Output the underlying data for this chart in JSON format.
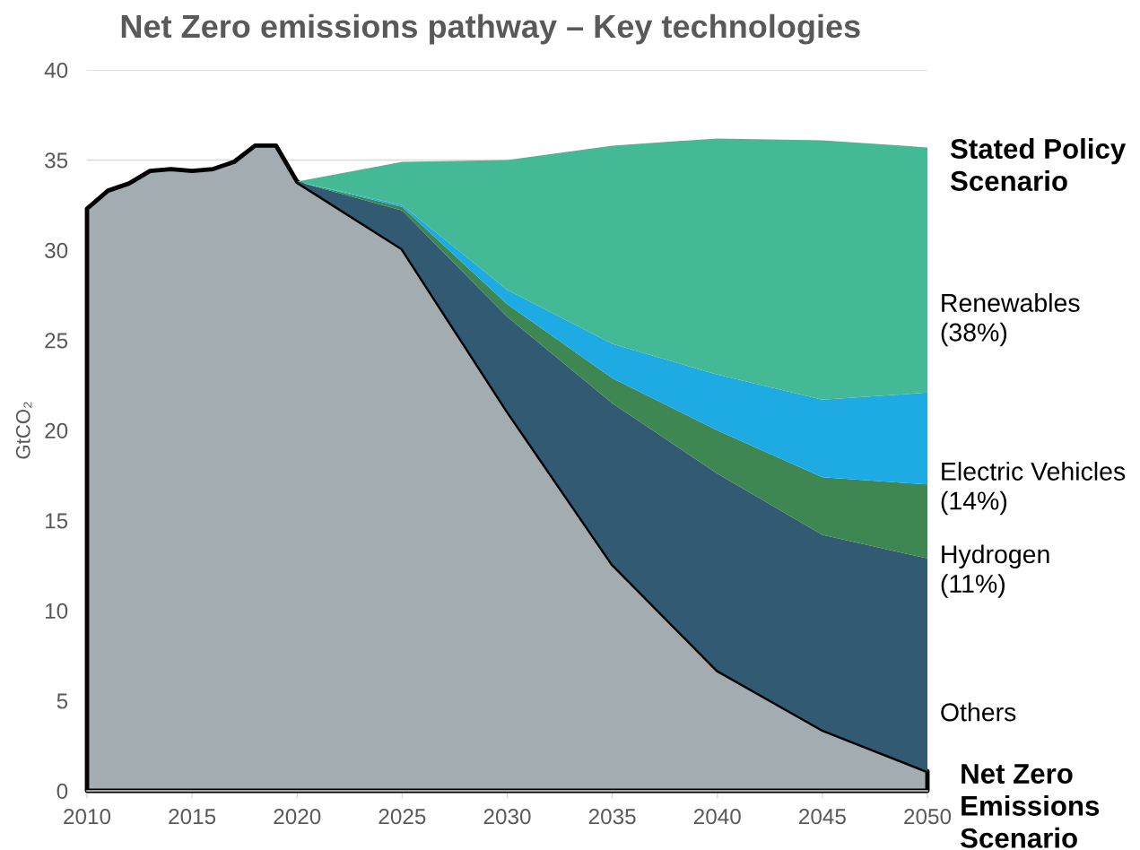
{
  "chart_data": {
    "type": "area",
    "stacked": true,
    "title": "Net Zero emissions pathway – Key technologies",
    "ylabel": "GtCO₂",
    "x": [
      2010,
      2011,
      2012,
      2013,
      2014,
      2015,
      2016,
      2017,
      2018,
      2019,
      2020,
      2025,
      2030,
      2035,
      2040,
      2045,
      2050
    ],
    "series": [
      {
        "name": "Net Zero\nEmissions\nScenario",
        "color": "#a2acb1",
        "values": [
          32.3,
          33.3,
          33.7,
          34.4,
          34.5,
          34.4,
          34.5,
          34.9,
          35.8,
          35.8,
          33.8,
          30.1,
          21.1,
          12.6,
          6.7,
          3.4,
          1.1
        ]
      },
      {
        "name": "Others",
        "color": "#325a73",
        "values": [
          null,
          null,
          null,
          null,
          null,
          null,
          null,
          null,
          null,
          null,
          0,
          2.1,
          5.2,
          8.9,
          10.9,
          10.8,
          11.8
        ]
      },
      {
        "name": "Hydrogen\n(11%)",
        "color": "#3e8753",
        "values": [
          null,
          null,
          null,
          null,
          null,
          null,
          null,
          null,
          null,
          null,
          0,
          0.2,
          0.7,
          1.4,
          2.4,
          3.2,
          4.1
        ]
      },
      {
        "name": "Electric Vehicles\n(14%)",
        "color": "#1eaae2",
        "values": [
          null,
          null,
          null,
          null,
          null,
          null,
          null,
          null,
          null,
          null,
          0,
          0.1,
          0.8,
          1.9,
          3.1,
          4.3,
          5.1
        ]
      },
      {
        "name": "Renewables\n(38%)",
        "color": "#43b995",
        "values": [
          null,
          null,
          null,
          null,
          null,
          null,
          null,
          null,
          null,
          null,
          0,
          2.4,
          7.2,
          11.0,
          13.1,
          14.4,
          13.6
        ]
      }
    ],
    "annotations": [
      {
        "text": "Stated Policy\nScenario",
        "x": 2050,
        "y": 35.7
      }
    ],
    "xlim": [
      2010,
      2050
    ],
    "ylim": [
      0,
      40
    ],
    "xticks": [
      2010,
      2015,
      2020,
      2025,
      2030,
      2035,
      2040,
      2045,
      2050
    ],
    "yticks": [
      0,
      5,
      10,
      15,
      20,
      25,
      30,
      35,
      40
    ],
    "grid": "y"
  }
}
